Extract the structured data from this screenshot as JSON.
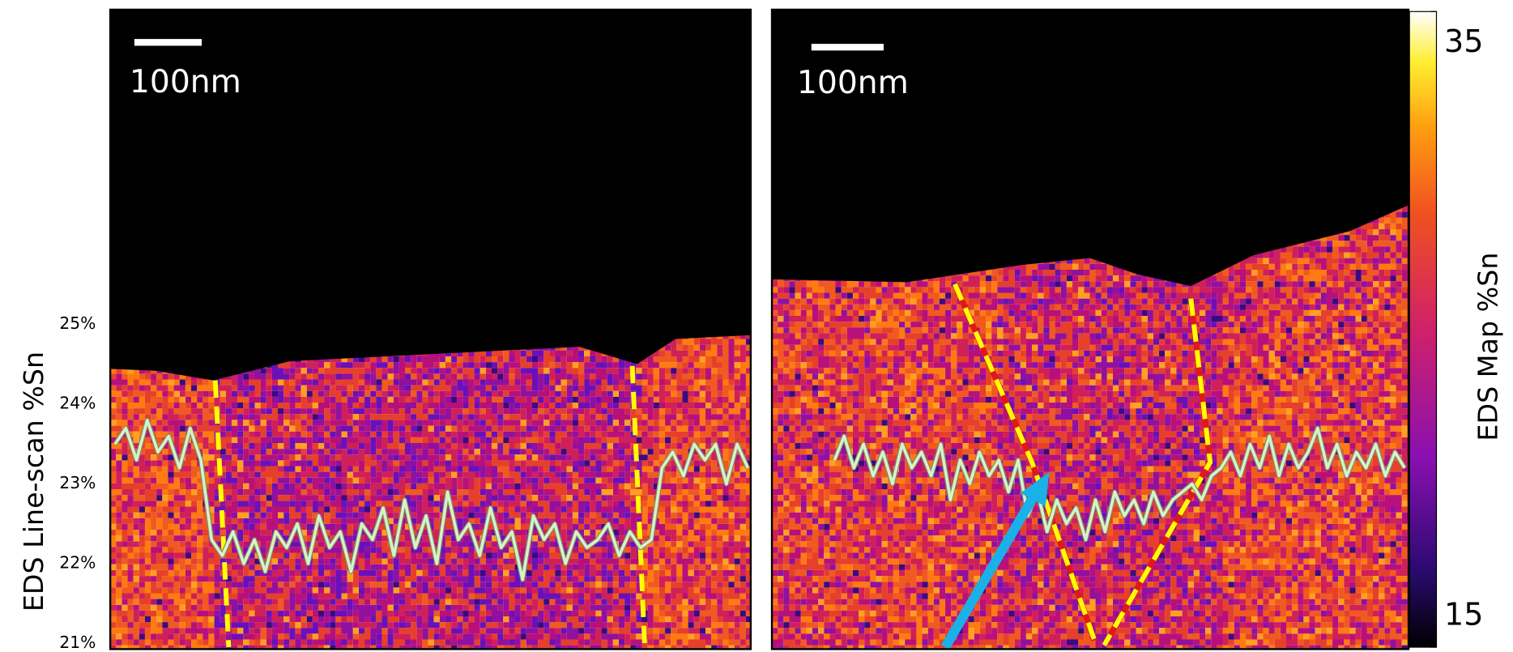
{
  "chart_data": {
    "type": "line",
    "y_label": "EDS Line-scan %Sn",
    "ylim": [
      21,
      25
    ],
    "yticks": [
      {
        "value": 21,
        "label": "21%"
      },
      {
        "value": 22,
        "label": "22%"
      },
      {
        "value": 23,
        "label": "23%"
      },
      {
        "value": 24,
        "label": "24%"
      },
      {
        "value": 25,
        "label": "25%"
      }
    ],
    "colorbar": {
      "label": "EDS Map %Sn",
      "clim": [
        15,
        35
      ],
      "ticks": [
        15,
        35
      ]
    },
    "scale_bar_labels": [
      "100nm",
      "100nm"
    ],
    "series": [
      {
        "color": "#d8f2c4",
        "values": [
          23.5,
          23.7,
          23.3,
          23.8,
          23.4,
          23.6,
          23.2,
          23.7,
          23.3,
          22.3,
          22.1,
          22.4,
          22.0,
          22.3,
          21.9,
          22.4,
          22.2,
          22.5,
          22.0,
          22.6,
          22.2,
          22.4,
          21.9,
          22.5,
          22.3,
          22.7,
          22.1,
          22.8,
          22.2,
          22.6,
          22.0,
          22.9,
          22.3,
          22.5,
          22.1,
          22.7,
          22.2,
          22.4,
          21.8,
          22.6,
          22.3,
          22.5,
          22.0,
          22.4,
          22.2,
          22.3,
          22.5,
          22.1,
          22.4,
          22.2,
          22.3,
          23.2,
          23.4,
          23.1,
          23.5,
          23.3,
          23.5,
          23.0,
          23.5,
          23.2
        ]
      },
      {
        "color": "#d8f2c4",
        "values": [
          23.3,
          23.6,
          23.2,
          23.5,
          23.1,
          23.4,
          23.0,
          23.5,
          23.2,
          23.4,
          23.1,
          23.5,
          22.8,
          23.3,
          23.0,
          23.4,
          23.1,
          23.3,
          22.9,
          23.3,
          22.6,
          22.9,
          22.4,
          22.8,
          22.5,
          22.7,
          22.3,
          22.8,
          22.4,
          22.9,
          22.6,
          22.8,
          22.5,
          22.9,
          22.6,
          22.8,
          22.9,
          23.0,
          22.8,
          23.1,
          23.2,
          23.4,
          23.1,
          23.5,
          23.2,
          23.6,
          23.1,
          23.5,
          23.2,
          23.4,
          23.7,
          23.2,
          23.5,
          23.1,
          23.4,
          23.2,
          23.5,
          23.1,
          23.4,
          23.2
        ]
      }
    ]
  }
}
